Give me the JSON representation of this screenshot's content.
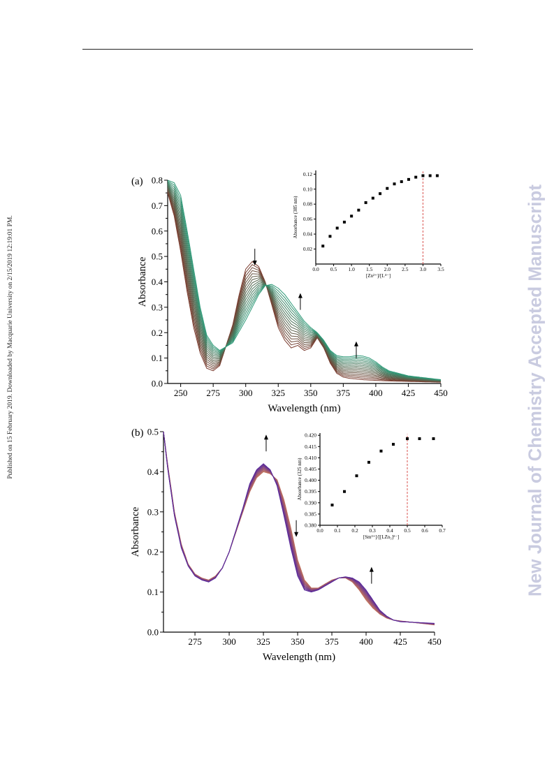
{
  "page": {
    "side_note": "Published on 15 February 2019. Downloaded by Macquarie University on 2/15/2019 12:19:01 PM.",
    "watermark": "New Journal of Chemistry Accepted Manuscript"
  },
  "chart_data": [
    {
      "id": "a",
      "type": "line",
      "panel_label": "(a)",
      "xlabel": "Wavelength (nm)",
      "ylabel": "Absorbance",
      "xlim": [
        240,
        450
      ],
      "ylim": [
        0.0,
        0.8
      ],
      "xticks": [
        "250",
        "275",
        "300",
        "325",
        "350",
        "375",
        "400",
        "425",
        "450"
      ],
      "yticks": [
        "0.0",
        "0.1",
        "0.2",
        "0.3",
        "0.4",
        "0.5",
        "0.6",
        "0.7",
        "0.8"
      ],
      "n_curves": 16,
      "color_start": "#7a3b2e",
      "color_end": "#2e9a78",
      "spectrum_first": {
        "x": [
          240,
          245,
          250,
          255,
          260,
          265,
          270,
          275,
          280,
          290,
          295,
          300,
          305,
          310,
          315,
          320,
          325,
          330,
          335,
          340,
          345,
          350,
          355,
          360,
          365,
          370,
          375,
          380,
          385,
          390,
          400,
          410,
          425,
          450
        ],
        "y": [
          0.75,
          0.66,
          0.52,
          0.36,
          0.22,
          0.12,
          0.06,
          0.05,
          0.07,
          0.23,
          0.35,
          0.45,
          0.48,
          0.46,
          0.4,
          0.31,
          0.22,
          0.17,
          0.14,
          0.15,
          0.13,
          0.14,
          0.18,
          0.14,
          0.08,
          0.04,
          0.025,
          0.02,
          0.018,
          0.015,
          0.012,
          0.01,
          0.008,
          0.005
        ]
      },
      "spectrum_last": {
        "x": [
          240,
          245,
          250,
          255,
          260,
          265,
          270,
          275,
          280,
          290,
          300,
          305,
          310,
          315,
          320,
          325,
          330,
          335,
          340,
          345,
          350,
          355,
          360,
          365,
          370,
          375,
          380,
          385,
          390,
          395,
          400,
          405,
          410,
          425,
          450
        ],
        "y": [
          0.8,
          0.79,
          0.74,
          0.6,
          0.45,
          0.3,
          0.19,
          0.15,
          0.13,
          0.16,
          0.25,
          0.3,
          0.35,
          0.385,
          0.39,
          0.375,
          0.35,
          0.315,
          0.28,
          0.245,
          0.22,
          0.2,
          0.17,
          0.13,
          0.11,
          0.105,
          0.105,
          0.11,
          0.108,
          0.1,
          0.085,
          0.065,
          0.05,
          0.03,
          0.015
        ]
      },
      "arrows": [
        {
          "x": 307,
          "y": 0.5,
          "dir": "down"
        },
        {
          "x": 342,
          "y": 0.32,
          "dir": "up"
        },
        {
          "x": 385,
          "y": 0.13,
          "dir": "up"
        }
      ],
      "inset": {
        "type": "scatter",
        "xlabel": "[Zn²⁺]/[L⁴⁻]",
        "ylabel": "Absorbance (385 nm)",
        "xlim": [
          0.0,
          3.5
        ],
        "ylim": [
          0.0,
          0.125
        ],
        "xticks": [
          "0.0",
          "0.5",
          "1.0",
          "1.5",
          "2.0",
          "2.5",
          "3.0",
          "3.5"
        ],
        "yticks": [
          "0.02",
          "0.04",
          "0.06",
          "0.08",
          "0.10",
          "0.12"
        ],
        "x": [
          0.2,
          0.4,
          0.6,
          0.8,
          1.0,
          1.2,
          1.4,
          1.6,
          1.8,
          2.0,
          2.2,
          2.4,
          2.6,
          2.8,
          3.0,
          3.2,
          3.4
        ],
        "y": [
          0.024,
          0.037,
          0.048,
          0.056,
          0.064,
          0.072,
          0.082,
          0.088,
          0.094,
          0.101,
          0.107,
          0.11,
          0.113,
          0.116,
          0.118,
          0.118,
          0.118
        ],
        "vline_x": 3.0,
        "vline_color": "#d9534f"
      }
    },
    {
      "id": "b",
      "type": "line",
      "panel_label": "(b)",
      "xlabel": "Wavelength (nm)",
      "ylabel": "Absorbance",
      "xlim": [
        252,
        450
      ],
      "ylim": [
        0.0,
        0.5
      ],
      "xticks": [
        "275",
        "300",
        "325",
        "350",
        "375",
        "400",
        "425",
        "450"
      ],
      "yticks": [
        "0.0",
        "0.1",
        "0.2",
        "0.3",
        "0.4",
        "0.5"
      ],
      "n_curves": 11,
      "color_start": "#c0705a",
      "color_end": "#5a2a9a",
      "spectrum_first": {
        "x": [
          252,
          255,
          260,
          265,
          270,
          275,
          280,
          285,
          290,
          295,
          300,
          310,
          315,
          320,
          325,
          330,
          335,
          340,
          345,
          350,
          355,
          360,
          365,
          370,
          375,
          380,
          385,
          390,
          395,
          400,
          405,
          410,
          415,
          420,
          425,
          450
        ],
        "y": [
          0.5,
          0.42,
          0.3,
          0.22,
          0.17,
          0.145,
          0.135,
          0.13,
          0.14,
          0.16,
          0.2,
          0.3,
          0.35,
          0.385,
          0.4,
          0.395,
          0.38,
          0.33,
          0.26,
          0.18,
          0.13,
          0.11,
          0.11,
          0.12,
          0.13,
          0.135,
          0.135,
          0.125,
          0.105,
          0.08,
          0.06,
          0.045,
          0.035,
          0.03,
          0.028,
          0.018
        ]
      },
      "spectrum_last": {
        "x": [
          252,
          255,
          260,
          265,
          270,
          275,
          280,
          285,
          290,
          295,
          300,
          310,
          315,
          320,
          325,
          330,
          335,
          340,
          345,
          350,
          355,
          360,
          365,
          370,
          375,
          380,
          385,
          390,
          395,
          400,
          405,
          410,
          415,
          420,
          425,
          450
        ],
        "y": [
          0.5,
          0.41,
          0.29,
          0.21,
          0.165,
          0.14,
          0.13,
          0.125,
          0.135,
          0.16,
          0.2,
          0.31,
          0.37,
          0.405,
          0.42,
          0.405,
          0.365,
          0.29,
          0.21,
          0.14,
          0.105,
          0.1,
          0.105,
          0.115,
          0.125,
          0.135,
          0.138,
          0.135,
          0.125,
          0.105,
          0.08,
          0.055,
          0.04,
          0.03,
          0.026,
          0.022
        ]
      },
      "arrows": [
        {
          "x": 327,
          "y": 0.47,
          "dir": "up"
        },
        {
          "x": 349,
          "y": 0.26,
          "dir": "down"
        },
        {
          "x": 404,
          "y": 0.14,
          "dir": "up"
        }
      ],
      "inset": {
        "type": "scatter",
        "xlabel": "[Sm³⁺]/[[LZn₃]²⁻]",
        "ylabel": "Absorbance (325 nm)",
        "xlim": [
          0.0,
          0.7
        ],
        "ylim": [
          0.38,
          0.421
        ],
        "xticks": [
          "0.0",
          "0.1",
          "0.2",
          "0.3",
          "0.4",
          "0.5",
          "0.6",
          "0.7"
        ],
        "yticks": [
          "0.380",
          "0.385",
          "0.390",
          "0.395",
          "0.400",
          "0.405",
          "0.410",
          "0.415",
          "0.420"
        ],
        "x": [
          0.07,
          0.14,
          0.21,
          0.28,
          0.35,
          0.42,
          0.5,
          0.57,
          0.65
        ],
        "y": [
          0.389,
          0.395,
          0.402,
          0.408,
          0.413,
          0.416,
          0.4185,
          0.4185,
          0.4185
        ],
        "vline_x": 0.5,
        "vline_color": "#d9534f"
      }
    }
  ]
}
